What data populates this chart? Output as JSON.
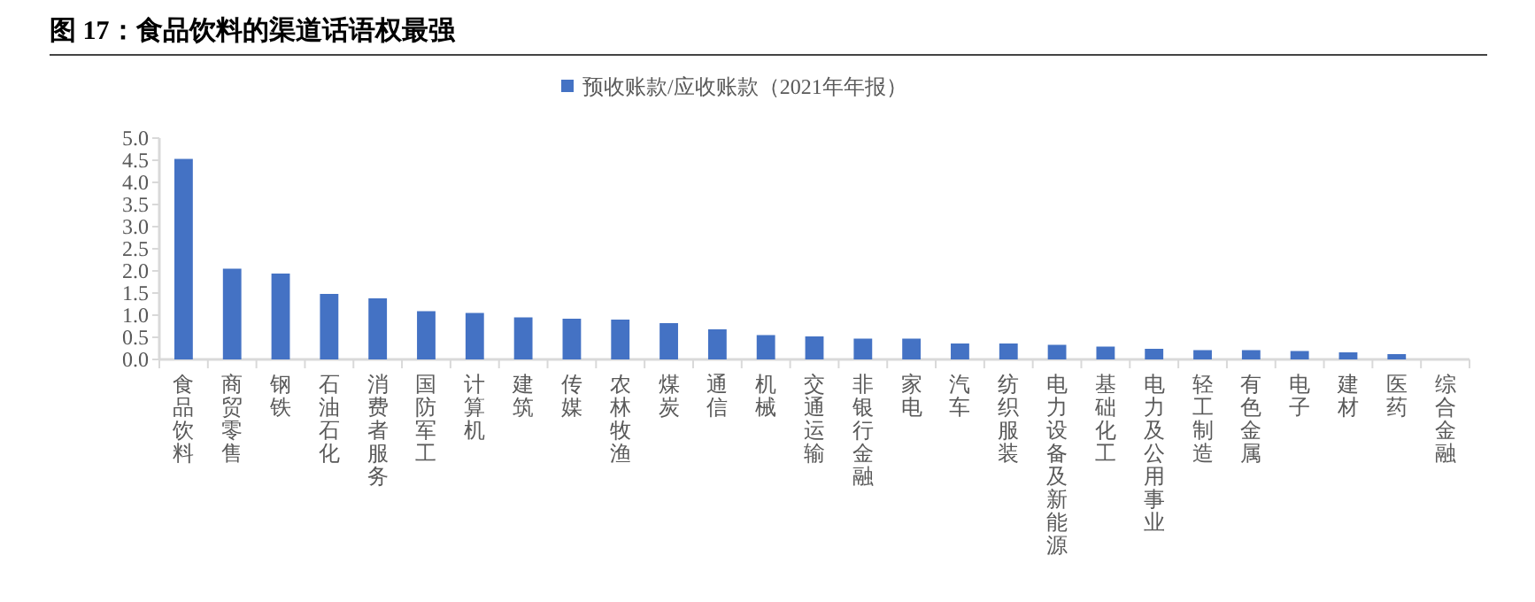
{
  "chart_data": {
    "type": "bar",
    "title": "图 17：食品饮料的渠道话语权最强",
    "categories": [
      "食品饮料",
      "商贸零售",
      "钢铁",
      "石油石化",
      "消费者服务",
      "国防军工",
      "计算机",
      "建筑",
      "传媒",
      "农林牧渔",
      "煤炭",
      "通信",
      "机械",
      "交通运输",
      "非银行金融",
      "家电",
      "汽车",
      "纺织服装",
      "电力设备及新能源",
      "基础化工",
      "电力及公用事业",
      "轻工制造",
      "有色金属",
      "电子",
      "建材",
      "医药",
      "综合金融"
    ],
    "series": [
      {
        "name": "预收账款/应收账款（2021年年报）",
        "color": "#4472c4",
        "values": [
          4.53,
          2.05,
          1.94,
          1.48,
          1.38,
          1.09,
          1.05,
          0.95,
          0.92,
          0.9,
          0.82,
          0.68,
          0.55,
          0.52,
          0.47,
          0.47,
          0.36,
          0.36,
          0.33,
          0.29,
          0.24,
          0.21,
          0.21,
          0.19,
          0.16,
          0.12,
          0
        ]
      }
    ],
    "ylim": [
      0,
      5
    ],
    "yticks": [
      {
        "value": 0,
        "label": "0.0"
      },
      {
        "value": 0.5,
        "label": "0.5"
      },
      {
        "value": 1,
        "label": "1.0"
      },
      {
        "value": 1.5,
        "label": "1.5"
      },
      {
        "value": 2,
        "label": "2.0"
      },
      {
        "value": 2.5,
        "label": "2.5"
      },
      {
        "value": 3,
        "label": "3.0"
      },
      {
        "value": 3.5,
        "label": "3.5"
      },
      {
        "value": 4,
        "label": "4.0"
      },
      {
        "value": 4.5,
        "label": "4.5"
      },
      {
        "value": 5,
        "label": "5.0"
      }
    ],
    "grid": false,
    "legend": "top"
  }
}
